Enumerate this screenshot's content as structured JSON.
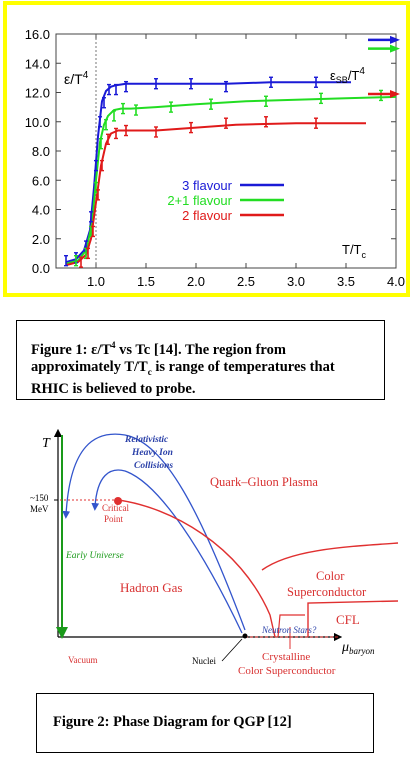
{
  "figure1": {
    "chart_data": {
      "type": "line",
      "title": "",
      "xlabel": "T/T",
      "xlabel_sub": "c",
      "ylabel": "ε/T",
      "ylabel_sup": "4",
      "xlim": [
        0.6,
        4.0
      ],
      "ylim": [
        0.0,
        16.0
      ],
      "xticks": [
        "1.0",
        "1.5",
        "2.0",
        "2.5",
        "3.0",
        "3.5",
        "4.0"
      ],
      "xtick_values": [
        1.0,
        1.5,
        2.0,
        2.5,
        3.0,
        3.5,
        4.0
      ],
      "yticks": [
        "0.0",
        "2.0",
        "4.0",
        "6.0",
        "8.0",
        "10.0",
        "12.0",
        "14.0",
        "16.0"
      ],
      "ytick_values": [
        0,
        2,
        4,
        6,
        8,
        10,
        12,
        14,
        16
      ],
      "legend_position": "center",
      "sb_label": "ε",
      "sb_label_sub": "SB",
      "sb_label_rest": "/T",
      "sb_label_sup": "4",
      "tc_line_x": 1.0,
      "series": [
        {
          "name": "3 flavour",
          "color": "#1a1ad6",
          "sb_value": 15.6,
          "x": [
            0.7,
            0.8,
            0.88,
            0.94,
            0.98,
            1.02,
            1.06,
            1.1,
            1.15,
            1.2,
            1.3,
            1.6,
            2.0,
            2.3,
            2.75,
            3.2,
            3.55
          ],
          "y": [
            0.4,
            0.6,
            1.2,
            2.6,
            5.5,
            9.0,
            11.4,
            12.1,
            12.4,
            12.5,
            12.6,
            12.6,
            12.6,
            12.6,
            12.7,
            12.7,
            12.7
          ],
          "points_x": [
            0.7,
            0.8,
            0.9,
            0.95,
            1.0,
            1.04,
            1.08,
            1.13,
            1.2,
            1.3,
            1.6,
            1.95,
            2.3,
            2.75,
            3.2
          ],
          "points_y": [
            0.5,
            0.7,
            1.5,
            3.5,
            7.0,
            10.0,
            11.3,
            12.2,
            12.2,
            12.4,
            12.6,
            12.6,
            12.4,
            12.7,
            12.7
          ]
        },
        {
          "name": "2+1 flavour",
          "color": "#22dd22",
          "sb_value": 15.0,
          "x": [
            0.7,
            0.82,
            0.9,
            0.96,
            1.0,
            1.04,
            1.08,
            1.12,
            1.18,
            1.25,
            1.35,
            1.6,
            2.0,
            2.5,
            3.0,
            3.5,
            4.0
          ],
          "y": [
            0.3,
            0.5,
            1.2,
            3.0,
            6.0,
            8.6,
            9.8,
            10.4,
            10.8,
            10.9,
            10.9,
            11.0,
            11.2,
            11.4,
            11.5,
            11.6,
            11.7
          ],
          "points_x": [
            0.8,
            0.9,
            0.95,
            1.0,
            1.05,
            1.1,
            1.18,
            1.27,
            1.4,
            1.75,
            2.15,
            2.7,
            3.25,
            3.85
          ],
          "points_y": [
            0.5,
            1.0,
            2.5,
            5.5,
            8.5,
            9.8,
            10.4,
            10.9,
            10.8,
            11.0,
            11.2,
            11.4,
            11.6,
            11.8
          ]
        },
        {
          "name": "2 flavour",
          "color": "#e01a1a",
          "sb_value": 11.9,
          "x": [
            0.7,
            0.82,
            0.9,
            0.95,
            1.0,
            1.05,
            1.1,
            1.15,
            1.22,
            1.3,
            1.6,
            2.0,
            2.4,
            3.0,
            3.5,
            3.7
          ],
          "y": [
            0.2,
            0.4,
            0.9,
            2.0,
            4.5,
            7.0,
            8.5,
            9.2,
            9.4,
            9.4,
            9.4,
            9.6,
            9.8,
            9.9,
            9.9,
            9.9
          ],
          "points_x": [
            0.85,
            0.92,
            0.97,
            1.02,
            1.06,
            1.12,
            1.2,
            1.3,
            1.6,
            1.95,
            2.3,
            2.7,
            3.2
          ],
          "points_y": [
            0.4,
            1.0,
            2.5,
            5.0,
            7.0,
            8.8,
            9.2,
            9.4,
            9.3,
            9.6,
            9.9,
            10.0,
            9.9
          ]
        }
      ]
    }
  },
  "caption1": {
    "prefix": "Figure 1: ",
    "eps": "ε",
    "t4": "/T",
    "sup4": "4",
    "mid": " vs Tc [14].  The region from approximately T/T",
    "sub_c": "c",
    "rest": " is range of temperatures that RHIC is believed to probe."
  },
  "figure2": {
    "chart_data": {
      "type": "diagram",
      "y_axis_label": "T",
      "x_axis_label": "μ",
      "x_axis_sub": "baryon",
      "tick_label_1": "~150",
      "tick_label_2": "MeV",
      "colors": {
        "axis": "#1a9a1a",
        "phase": "#e03030",
        "arrows": "#3355cc",
        "text_red": "#d83030",
        "text_blue": "#2a40a8"
      },
      "labels": {
        "rhic_1": "Relativistic",
        "rhic_2": "Heavy Ion",
        "rhic_3": "Collisions",
        "qgp": "Quark–Gluon Plasma",
        "critical_1": "Critical",
        "critical_2": "Point",
        "early_universe": "Early Universe",
        "hadron_gas": "Hadron Gas",
        "color_sc_1": "Color",
        "color_sc_2": "Superconductor",
        "cfl": "CFL",
        "neutron_stars": "Neutron Stars?",
        "vacuum": "Vacuum",
        "nuclei": "Nuclei",
        "crystalline_1": "Crystalline",
        "crystalline_2": "Color Superconductor"
      }
    }
  },
  "caption2": {
    "text": "Figure 2: Phase Diagram for QGP [12]"
  }
}
